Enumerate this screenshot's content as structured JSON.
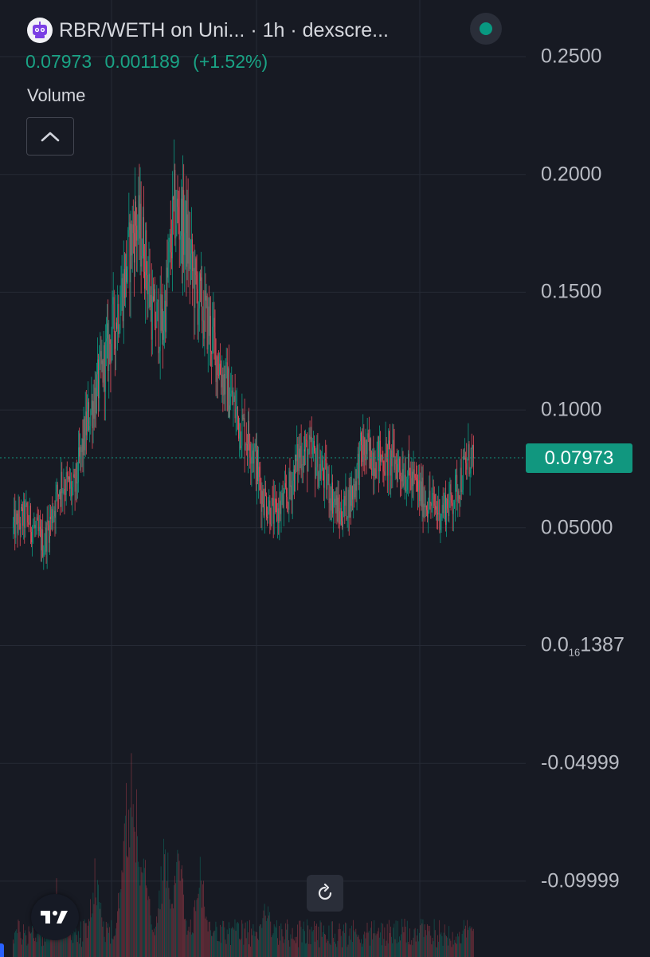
{
  "header": {
    "title": "RBR/WETH on Uni... · 1h · dexscre...",
    "logo_icon": "robot-icon",
    "status_icon": "live-dot-icon"
  },
  "ohlc": {
    "last": "0.07973",
    "change": "0.001189",
    "change_pct": "(+1.52%)"
  },
  "volume_label": "Volume",
  "price_axis": {
    "labels": [
      {
        "value": 0.25,
        "text": "0.2500"
      },
      {
        "value": 0.2,
        "text": "0.2000"
      },
      {
        "value": 0.15,
        "text": "0.1500"
      },
      {
        "value": 0.1,
        "text": "0.1000"
      },
      {
        "value": 0.05,
        "text": "0.05000"
      },
      {
        "value": 0.0,
        "text_main": "0.0",
        "text_sub": "16",
        "text_tail": "1387"
      },
      {
        "value": -0.05,
        "text": "-0.04999"
      },
      {
        "value": -0.1,
        "text": "-0.09999"
      }
    ],
    "last_price_label": "0.07973"
  },
  "colors": {
    "background": "#171a23",
    "up": "#0b9a82",
    "down": "#e24c5a",
    "accent": "#11977f",
    "grid": "#262a35"
  },
  "chart_data": {
    "type": "candlestick",
    "pair": "RBR/WETH",
    "interval": "1h",
    "price_range": [
      -0.125,
      0.255
    ],
    "last_price": 0.07973,
    "change": 0.001189,
    "change_pct": 1.52,
    "price_profile": [
      {
        "bar": 0,
        "price": 0.05
      },
      {
        "bar": 15,
        "price": 0.055
      },
      {
        "bar": 35,
        "price": 0.043
      },
      {
        "bar": 55,
        "price": 0.07
      },
      {
        "bar": 70,
        "price": 0.065
      },
      {
        "bar": 85,
        "price": 0.095
      },
      {
        "bar": 105,
        "price": 0.12
      },
      {
        "bar": 125,
        "price": 0.15
      },
      {
        "bar": 140,
        "price": 0.18
      },
      {
        "bar": 150,
        "price": 0.17
      },
      {
        "bar": 160,
        "price": 0.14
      },
      {
        "bar": 172,
        "price": 0.135
      },
      {
        "bar": 185,
        "price": 0.185
      },
      {
        "bar": 198,
        "price": 0.175
      },
      {
        "bar": 210,
        "price": 0.15
      },
      {
        "bar": 225,
        "price": 0.135
      },
      {
        "bar": 240,
        "price": 0.115
      },
      {
        "bar": 260,
        "price": 0.095
      },
      {
        "bar": 275,
        "price": 0.085
      },
      {
        "bar": 285,
        "price": 0.065
      },
      {
        "bar": 300,
        "price": 0.055
      },
      {
        "bar": 315,
        "price": 0.063
      },
      {
        "bar": 330,
        "price": 0.083
      },
      {
        "bar": 345,
        "price": 0.08
      },
      {
        "bar": 360,
        "price": 0.07
      },
      {
        "bar": 375,
        "price": 0.055
      },
      {
        "bar": 390,
        "price": 0.065
      },
      {
        "bar": 400,
        "price": 0.083
      },
      {
        "bar": 420,
        "price": 0.08
      },
      {
        "bar": 440,
        "price": 0.078
      },
      {
        "bar": 455,
        "price": 0.072
      },
      {
        "bar": 470,
        "price": 0.063
      },
      {
        "bar": 490,
        "price": 0.057
      },
      {
        "bar": 505,
        "price": 0.062
      },
      {
        "bar": 515,
        "price": 0.072
      },
      {
        "bar": 525,
        "price": 0.08
      }
    ],
    "volume_peaks": [
      {
        "bar": 50,
        "level": 0.35
      },
      {
        "bar": 95,
        "level": 0.45
      },
      {
        "bar": 130,
        "level": 0.75
      },
      {
        "bar": 138,
        "level": 1.0
      },
      {
        "bar": 150,
        "level": 0.6
      },
      {
        "bar": 175,
        "level": 0.6
      },
      {
        "bar": 190,
        "level": 0.55
      },
      {
        "bar": 215,
        "level": 0.45
      },
      {
        "bar": 290,
        "level": 0.3
      }
    ]
  }
}
